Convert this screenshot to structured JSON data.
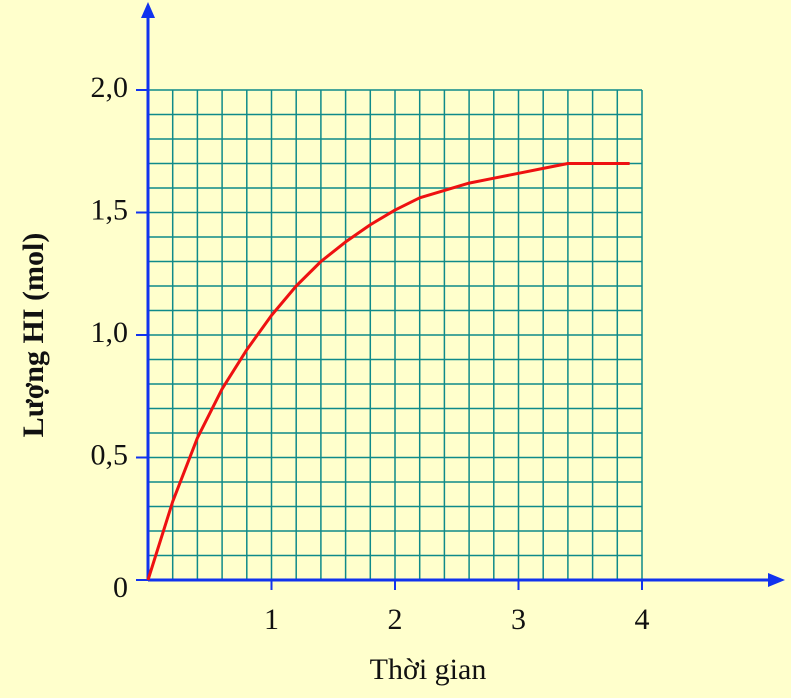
{
  "chart_data": {
    "type": "line",
    "x_label": "Thời gian",
    "y_label": "Lượng HI (mol)",
    "x": [
      0,
      0.2,
      0.4,
      0.6,
      0.8,
      1.0,
      1.2,
      1.4,
      1.6,
      1.8,
      2.0,
      2.2,
      2.4,
      2.6,
      2.8,
      3.0,
      3.2,
      3.4,
      3.6,
      3.8,
      3.9
    ],
    "series": [
      {
        "name": "HI",
        "color": "#ee1111",
        "values": [
          0,
          0.32,
          0.58,
          0.78,
          0.94,
          1.08,
          1.2,
          1.3,
          1.38,
          1.45,
          1.51,
          1.56,
          1.59,
          1.62,
          1.64,
          1.66,
          1.68,
          1.7,
          1.7,
          1.7,
          1.7
        ]
      }
    ],
    "xlim": [
      0,
      4
    ],
    "ylim": [
      0,
      2
    ],
    "xticks": [
      1,
      2,
      3,
      4
    ],
    "yticks": [
      {
        "value": 0,
        "label": "0"
      },
      {
        "value": 0.5,
        "label": "0,5"
      },
      {
        "value": 1,
        "label": "1,0"
      },
      {
        "value": 1.5,
        "label": "1,5"
      },
      {
        "value": 2,
        "label": "2,0"
      }
    ],
    "x_minor_step": 0.2,
    "y_minor_step": 0.1,
    "grid": true,
    "grid_color": "#0f8a8a",
    "axis_color": "#1133ee"
  }
}
